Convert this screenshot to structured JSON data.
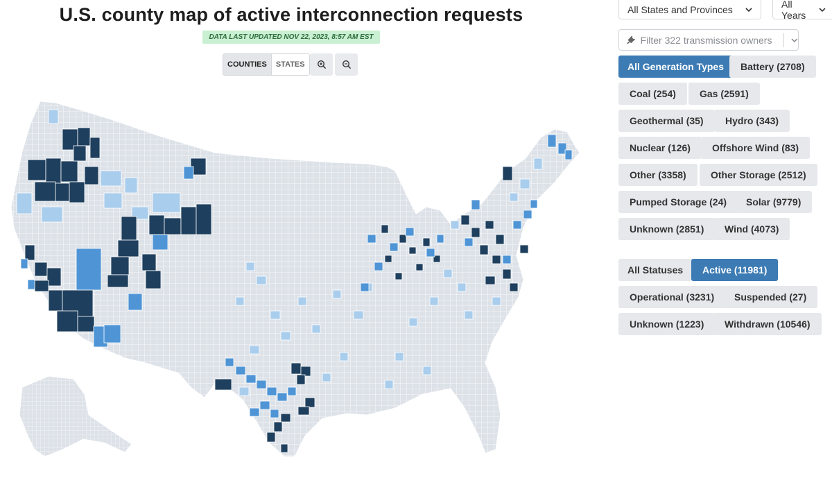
{
  "header": {
    "title": "U.S. county map of active interconnection requests",
    "updated": "DATA LAST UPDATED NOV 22, 2023, 8:57 AM EST"
  },
  "map_controls": {
    "counties_label": "COUNTIES",
    "states_label": "STATES",
    "zoom_in_icon": "zoom-in-icon",
    "zoom_out_icon": "zoom-out-icon"
  },
  "dropdowns": {
    "states": "All States and Provinces",
    "years": "All Years"
  },
  "owner_filter": {
    "placeholder": "Filter 322 transmission owners",
    "icon": "plug-icon"
  },
  "generation_types": [
    {
      "label": "All Generation Types",
      "active": true
    },
    {
      "label": "Battery (2708)",
      "active": false
    },
    {
      "label": "Coal (254)",
      "active": false
    },
    {
      "label": "Gas (2591)",
      "active": false
    },
    {
      "label": "Geothermal (35)",
      "active": false
    },
    {
      "label": "Hydro (343)",
      "active": false
    },
    {
      "label": "Nuclear (126)",
      "active": false
    },
    {
      "label": "Offshore Wind (83)",
      "active": false
    },
    {
      "label": "Other (3358)",
      "active": false
    },
    {
      "label": "Other Storage (2512)",
      "active": false
    },
    {
      "label": "Pumped Storage (24)",
      "active": false
    },
    {
      "label": "Solar (9779)",
      "active": false
    },
    {
      "label": "Unknown (2851)",
      "active": false
    },
    {
      "label": "Wind (4073)",
      "active": false
    }
  ],
  "statuses": [
    {
      "label": "All Statuses",
      "active": false
    },
    {
      "label": "Active (11981)",
      "active": true
    },
    {
      "label": "Operational (3231)",
      "active": false
    },
    {
      "label": "Suspended (27)",
      "active": false
    },
    {
      "label": "Unknown (1223)",
      "active": false
    },
    {
      "label": "Withdrawn (10546)",
      "active": false
    }
  ],
  "colors": {
    "accent": "#3c7bb4",
    "county_none": "#dde2e8",
    "county_low": "#a9cdec",
    "county_mid": "#4f95d6",
    "county_high": "#1f3f5e",
    "updated_bg": "#c9f0d2"
  }
}
